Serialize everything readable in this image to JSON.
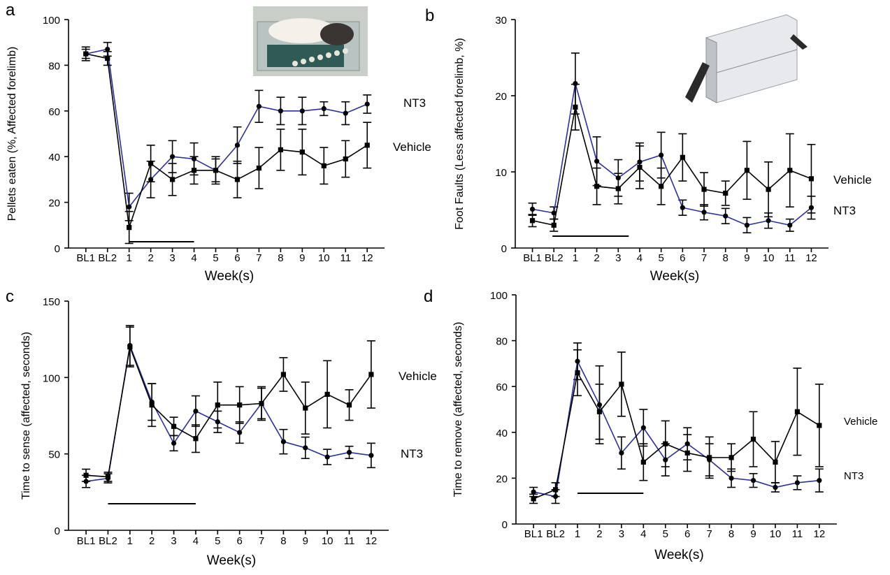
{
  "chart_data": [
    {
      "type": "line",
      "panel_letter": "a",
      "ylabel": "Pellets eaten (%, Affected forelimb)",
      "xlabel": "Week(s)",
      "categories": [
        "BL1",
        "BL2",
        "1",
        "2",
        "3",
        "4",
        "5",
        "6",
        "7",
        "8",
        "9",
        "10",
        "11",
        "12"
      ],
      "ylim": [
        0,
        100
      ],
      "yticks": [
        "0",
        "20",
        "40",
        "60",
        "80",
        "100"
      ],
      "series": [
        {
          "name": "NT3",
          "color": "#2b2fa0",
          "marker": "circle",
          "values": [
            85,
            87,
            18,
            30,
            40,
            39,
            34,
            45,
            62,
            60,
            60,
            61,
            59,
            63
          ],
          "errors": [
            2,
            3,
            6,
            8,
            7,
            7,
            6,
            8,
            7,
            6,
            6,
            3,
            5,
            4
          ]
        },
        {
          "name": "Vehicle",
          "color": "#000000",
          "marker": "square",
          "values": [
            85,
            83,
            9,
            37,
            30,
            34,
            34,
            30,
            35,
            43,
            42,
            36,
            39,
            45
          ],
          "errors": [
            3,
            3,
            7,
            8,
            7,
            6,
            5,
            8,
            9,
            9,
            10,
            8,
            8,
            10
          ]
        }
      ],
      "bar_weeks": [
        "1",
        "4"
      ]
    },
    {
      "type": "line",
      "panel_letter": "b",
      "ylabel": "Foot Faults (Less affected forelimb, %)",
      "xlabel": "Week(s)",
      "categories": [
        "BL1",
        "BL2",
        "1",
        "2",
        "3",
        "4",
        "5",
        "6",
        "7",
        "8",
        "9",
        "10",
        "11",
        "12"
      ],
      "ylim": [
        0,
        30
      ],
      "yticks": [
        "0",
        "10",
        "20",
        "30"
      ],
      "series": [
        {
          "name": "NT3",
          "color": "#2b2fa0",
          "marker": "circle",
          "values": [
            5.1,
            4.6,
            21.6,
            11.4,
            9.2,
            11.3,
            12.2,
            5.3,
            4.7,
            4.2,
            3.0,
            3.6,
            3.0,
            5.3
          ],
          "errors": [
            0.8,
            0.8,
            4,
            3.2,
            2.4,
            2.5,
            3,
            1.0,
            1.0,
            1.0,
            1.0,
            1.0,
            0.8,
            1.5
          ]
        },
        {
          "name": "Vehicle",
          "color": "#000000",
          "marker": "square",
          "values": [
            3.6,
            3.0,
            18.5,
            8.1,
            7.8,
            10.6,
            8.1,
            11.9,
            7.7,
            7.2,
            10.2,
            7.7,
            10.2,
            9.1
          ],
          "errors": [
            0.8,
            0.8,
            3.0,
            2.4,
            2.0,
            2.8,
            2.4,
            3.1,
            2.2,
            1.6,
            3.8,
            3.6,
            4.8,
            4.5
          ]
        }
      ],
      "bar_weeks": [
        "BL2",
        "3"
      ]
    },
    {
      "type": "line",
      "panel_letter": "c",
      "ylabel": "Time to sense (affected, seconds)",
      "xlabel": "Week(s)",
      "categories": [
        "BL1",
        "BL2",
        "1",
        "2",
        "3",
        "4",
        "5",
        "6",
        "7",
        "8",
        "9",
        "10",
        "11",
        "12"
      ],
      "ylim": [
        0,
        150
      ],
      "yticks": [
        "0",
        "50",
        "100",
        "150"
      ],
      "series": [
        {
          "name": "NT3",
          "color": "#2b2fa0",
          "marker": "circle",
          "values": [
            32,
            34,
            121,
            84,
            57,
            78,
            71,
            64,
            83,
            58,
            54,
            48,
            51,
            49
          ],
          "errors": [
            4,
            3,
            13,
            12,
            5,
            10,
            7,
            7,
            10,
            8,
            7,
            5,
            4,
            8
          ]
        },
        {
          "name": "Vehicle",
          "color": "#000000",
          "marker": "square",
          "values": [
            36,
            35,
            120,
            82,
            68,
            60,
            82,
            82,
            83,
            102,
            80,
            89,
            82,
            102
          ],
          "errors": [
            4,
            3,
            13,
            14,
            6,
            9,
            15,
            12,
            11,
            11,
            17,
            22,
            10,
            22
          ]
        }
      ],
      "bar_weeks": [
        "BL2",
        "4"
      ]
    },
    {
      "type": "line",
      "panel_letter": "d",
      "ylabel": "Time to remove (affected, seconds)",
      "xlabel": "Week(s)",
      "categories": [
        "BL1",
        "BL2",
        "1",
        "2",
        "3",
        "4",
        "5",
        "6",
        "7",
        "8",
        "9",
        "10",
        "11",
        "12"
      ],
      "ylim": [
        0,
        100
      ],
      "yticks": [
        "0",
        "20",
        "40",
        "60",
        "80",
        "100"
      ],
      "series": [
        {
          "name": "NT3",
          "color": "#2b2fa0",
          "marker": "circle",
          "values": [
            14,
            12,
            71,
            52,
            31,
            42,
            28,
            35,
            28,
            20,
            19,
            16,
            18,
            19
          ],
          "errors": [
            2,
            3,
            8,
            17,
            7,
            8,
            7,
            7,
            7,
            4,
            3,
            2,
            3,
            5
          ]
        },
        {
          "name": "Vehicle",
          "color": "#000000",
          "marker": "square",
          "values": [
            11,
            15,
            66,
            49,
            61,
            27,
            35,
            31,
            29,
            29,
            37,
            27,
            49,
            43
          ],
          "errors": [
            2,
            3,
            10,
            12,
            14,
            8,
            10,
            8,
            9,
            6,
            12,
            9,
            19,
            18
          ]
        }
      ],
      "bar_weeks": [
        "1",
        "4"
      ]
    }
  ]
}
